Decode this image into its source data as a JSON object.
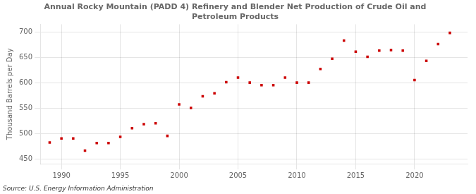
{
  "chart_data": {
    "type": "scatter",
    "title": [
      "Annual Rocky Mountain (PADD 4) Refinery and Blender Net Production of Crude Oil and",
      "Petroleum Products"
    ],
    "ylabel": "Thousand Barrels per Day",
    "annotations": [
      "Source: U.S. Energy Information Administration"
    ],
    "x": [
      1989,
      1990,
      1991,
      1992,
      1993,
      1994,
      1995,
      1996,
      1997,
      1998,
      1999,
      2000,
      2001,
      2002,
      2003,
      2004,
      2005,
      2006,
      2007,
      2008,
      2009,
      2010,
      2011,
      2012,
      2013,
      2014,
      2015,
      2016,
      2017,
      2018,
      2019,
      2020,
      2021,
      2022,
      2023
    ],
    "values": [
      482,
      490,
      490,
      466,
      481,
      481,
      493,
      510,
      518,
      520,
      495,
      557,
      550,
      573,
      579,
      601,
      610,
      600,
      595,
      595,
      610,
      600,
      600,
      627,
      647,
      683,
      661,
      651,
      663,
      664,
      663,
      605,
      643,
      676,
      698
    ],
    "color": "#cc0000",
    "marker": "square",
    "xlim": [
      1988.2,
      2024.5
    ],
    "xticks": [
      1990,
      1995,
      2000,
      2005,
      2010,
      2015,
      2020
    ],
    "ylim": [
      440,
      715
    ],
    "yticks": [
      450,
      500,
      550,
      600,
      650,
      700
    ],
    "grid": true
  }
}
